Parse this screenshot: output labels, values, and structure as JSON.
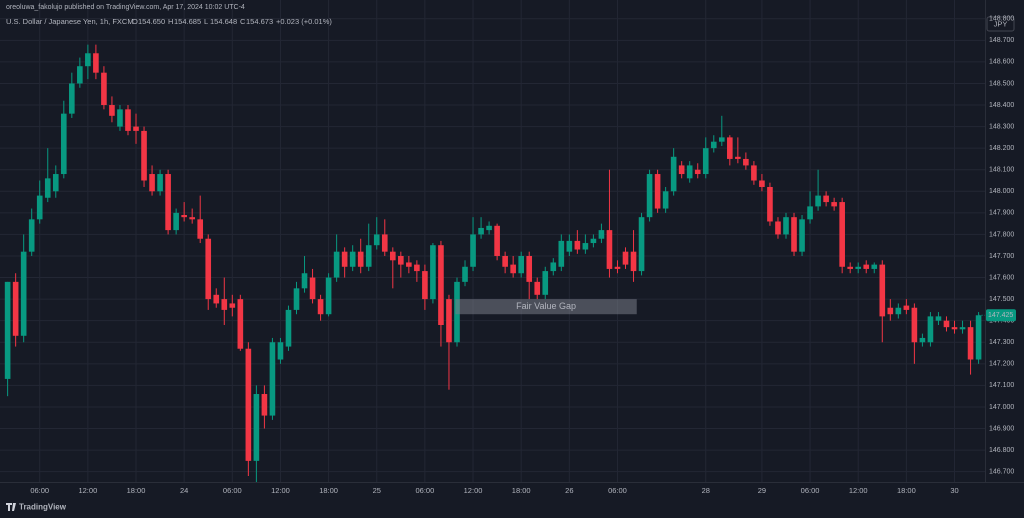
{
  "header": {
    "publisher": "oreoluwa_fakolujo published on TradingView.com, Apr 17, 2024 10:02 UTC-4",
    "footer": "TradingView"
  },
  "chart_data": {
    "type": "candlestick",
    "title": "U.S. Dollar / Japanese Yen, 1h, FXCM",
    "ohlc_readout": [
      {
        "label": "O",
        "value": "154.650"
      },
      {
        "label": "H",
        "value": "154.685"
      },
      {
        "label": "L",
        "value": "154.648"
      },
      {
        "label": "C",
        "value": "154.673"
      }
    ],
    "change": "+0.023 (+0.01%)",
    "currency": "JPY",
    "up_color": "#089981",
    "down_color": "#f23645",
    "series": {
      "open": [
        147.13,
        147.58,
        147.33,
        147.72,
        147.87,
        147.97,
        148.0,
        148.08,
        148.36,
        148.5,
        148.58,
        148.64,
        148.55,
        148.4,
        148.3,
        148.38,
        148.3,
        148.28,
        148.08,
        148.0,
        148.08,
        147.82,
        147.89,
        147.88,
        147.87,
        147.78,
        147.52,
        147.5,
        147.48,
        147.5,
        147.27,
        146.75,
        147.06,
        146.96,
        147.22,
        147.28,
        147.45,
        147.55,
        147.6,
        147.5,
        147.43,
        147.6,
        147.72,
        147.65,
        147.72,
        147.65,
        147.75,
        147.8,
        147.72,
        147.7,
        147.67,
        147.66,
        147.63,
        147.5,
        147.75,
        147.5,
        147.3,
        147.58,
        147.65,
        147.8,
        147.82,
        147.84,
        147.7,
        147.66,
        147.62,
        147.7,
        147.58,
        147.52,
        147.63,
        147.65,
        147.72,
        147.77,
        147.73,
        147.76,
        147.78,
        147.82,
        147.65,
        147.72,
        147.72,
        147.63,
        147.88,
        148.08,
        147.92,
        148.0,
        148.12,
        148.06,
        148.1,
        148.08,
        148.2,
        148.23,
        148.25,
        148.16,
        148.15,
        148.12,
        148.05,
        148.02,
        147.86,
        147.8,
        147.88,
        147.72,
        147.87,
        147.93,
        147.98,
        147.95,
        147.95,
        147.65,
        147.64,
        147.66,
        147.64,
        147.66,
        147.46,
        147.43,
        147.47,
        147.46,
        147.3,
        147.3,
        147.4,
        147.4,
        147.37,
        147.36,
        147.37,
        147.22
      ],
      "high": [
        147.58,
        147.62,
        147.8,
        147.92,
        148.05,
        148.2,
        148.12,
        148.42,
        148.55,
        148.62,
        148.68,
        148.68,
        148.58,
        148.44,
        148.4,
        148.4,
        148.36,
        148.3,
        148.12,
        148.1,
        148.1,
        147.92,
        147.95,
        147.92,
        147.98,
        147.8,
        147.55,
        147.6,
        147.52,
        147.52,
        147.3,
        147.1,
        147.1,
        147.32,
        147.32,
        147.47,
        147.58,
        147.7,
        147.64,
        147.52,
        147.62,
        147.8,
        147.74,
        147.75,
        147.78,
        147.85,
        147.88,
        147.87,
        147.74,
        147.72,
        147.7,
        147.68,
        147.66,
        147.76,
        147.77,
        147.52,
        147.6,
        147.68,
        147.88,
        147.88,
        147.86,
        147.85,
        147.72,
        147.7,
        147.72,
        147.72,
        147.6,
        147.65,
        147.69,
        147.8,
        147.8,
        147.82,
        147.8,
        147.8,
        147.85,
        148.1,
        147.68,
        147.74,
        147.82,
        147.9,
        148.1,
        148.1,
        148.02,
        148.2,
        148.14,
        148.14,
        148.13,
        148.25,
        148.26,
        148.35,
        148.26,
        148.25,
        148.18,
        148.14,
        148.08,
        148.04,
        147.88,
        147.9,
        147.9,
        147.89,
        148.0,
        148.1,
        148.0,
        147.97,
        147.97,
        147.67,
        147.67,
        147.68,
        147.67,
        147.68,
        147.5,
        147.48,
        147.5,
        147.48,
        147.34,
        147.44,
        147.44,
        147.42,
        147.4,
        147.4,
        147.4,
        147.44
      ],
      "low": [
        147.05,
        147.28,
        147.3,
        147.7,
        147.85,
        147.95,
        147.97,
        148.06,
        148.34,
        148.48,
        148.52,
        148.52,
        148.38,
        148.32,
        148.28,
        148.26,
        148.22,
        148.02,
        147.98,
        147.98,
        147.8,
        147.8,
        147.86,
        147.85,
        147.76,
        147.45,
        147.46,
        147.38,
        147.42,
        147.26,
        146.68,
        146.65,
        146.9,
        146.94,
        147.2,
        147.26,
        147.43,
        147.53,
        147.48,
        147.4,
        147.42,
        147.58,
        147.6,
        147.63,
        147.62,
        147.63,
        147.73,
        147.7,
        147.55,
        147.6,
        147.62,
        147.58,
        147.45,
        147.48,
        147.28,
        147.08,
        147.28,
        147.56,
        147.63,
        147.78,
        147.8,
        147.68,
        147.62,
        147.6,
        147.6,
        147.5,
        147.5,
        147.5,
        147.61,
        147.63,
        147.7,
        147.71,
        147.71,
        147.74,
        147.76,
        147.6,
        147.62,
        147.64,
        147.58,
        147.61,
        147.86,
        147.9,
        147.9,
        147.98,
        148.06,
        148.04,
        148.06,
        148.06,
        148.18,
        148.21,
        148.12,
        148.13,
        148.1,
        148.03,
        148.0,
        147.84,
        147.78,
        147.78,
        147.7,
        147.7,
        147.85,
        147.91,
        147.93,
        147.91,
        147.62,
        147.62,
        147.62,
        147.62,
        147.62,
        147.3,
        147.4,
        147.41,
        147.43,
        147.2,
        147.28,
        147.28,
        147.38,
        147.35,
        147.34,
        147.34,
        147.15,
        147.2
      ],
      "close": [
        147.58,
        147.33,
        147.72,
        147.87,
        147.98,
        148.06,
        148.08,
        148.36,
        148.5,
        148.58,
        148.64,
        148.55,
        148.4,
        148.35,
        148.38,
        148.28,
        148.28,
        148.05,
        148.0,
        148.08,
        147.82,
        147.9,
        147.88,
        147.87,
        147.78,
        147.5,
        147.48,
        147.45,
        147.46,
        147.27,
        146.75,
        147.06,
        146.96,
        147.3,
        147.3,
        147.45,
        147.55,
        147.62,
        147.5,
        147.43,
        147.6,
        147.72,
        147.65,
        147.72,
        147.65,
        147.75,
        147.8,
        147.72,
        147.68,
        147.66,
        147.65,
        147.63,
        147.5,
        147.75,
        147.38,
        147.3,
        147.58,
        147.65,
        147.8,
        147.83,
        147.84,
        147.7,
        147.65,
        147.62,
        147.7,
        147.58,
        147.52,
        147.63,
        147.67,
        147.77,
        147.77,
        147.73,
        147.76,
        147.78,
        147.82,
        147.64,
        147.64,
        147.66,
        147.63,
        147.88,
        148.08,
        147.92,
        148.0,
        148.16,
        148.08,
        148.12,
        148.08,
        148.2,
        148.23,
        148.25,
        148.15,
        148.15,
        148.12,
        148.05,
        148.02,
        147.86,
        147.8,
        147.88,
        147.72,
        147.87,
        147.93,
        147.98,
        147.95,
        147.93,
        147.65,
        147.64,
        147.65,
        147.64,
        147.66,
        147.42,
        147.43,
        147.46,
        147.45,
        147.3,
        147.32,
        147.42,
        147.42,
        147.37,
        147.36,
        147.37,
        147.22,
        147.425
      ]
    },
    "fair_value_gap": {
      "label": "Fair Value Gap",
      "x": [
        55.8,
        78.4
      ],
      "y": [
        147.43,
        147.5
      ]
    },
    "xlim": [
      -0.95,
      121.8
    ],
    "xticks": [
      {
        "value": 4,
        "label": "06:00"
      },
      {
        "value": 10,
        "label": "12:00"
      },
      {
        "value": 16,
        "label": "18:00"
      },
      {
        "value": 22,
        "label": "24"
      },
      {
        "value": 28,
        "label": "06:00"
      },
      {
        "value": 34,
        "label": "12:00"
      },
      {
        "value": 40,
        "label": "18:00"
      },
      {
        "value": 46,
        "label": "25"
      },
      {
        "value": 52,
        "label": "06:00"
      },
      {
        "value": 58,
        "label": "12:00"
      },
      {
        "value": 64,
        "label": "18:00"
      },
      {
        "value": 70,
        "label": "26"
      },
      {
        "value": 76,
        "label": "06:00"
      },
      {
        "value": 87,
        "label": "28"
      },
      {
        "value": 94,
        "label": "29"
      },
      {
        "value": 100,
        "label": "06:00"
      },
      {
        "value": 106,
        "label": "12:00"
      },
      {
        "value": 112,
        "label": "18:00"
      },
      {
        "value": 118,
        "label": "30"
      }
    ],
    "ylim": [
      146.652,
      148.887
    ],
    "yticks": [
      {
        "value": 146.7,
        "label": "146.700"
      },
      {
        "value": 146.8,
        "label": "146.800"
      },
      {
        "value": 146.9,
        "label": "146.900"
      },
      {
        "value": 147.0,
        "label": "147.000"
      },
      {
        "value": 147.1,
        "label": "147.100"
      },
      {
        "value": 147.2,
        "label": "147.200"
      },
      {
        "value": 147.3,
        "label": "147.300"
      },
      {
        "value": 147.4,
        "label": "147.400"
      },
      {
        "value": 147.5,
        "label": "147.500"
      },
      {
        "value": 147.6,
        "label": "147.600"
      },
      {
        "value": 147.7,
        "label": "147.700"
      },
      {
        "value": 147.8,
        "label": "147.800"
      },
      {
        "value": 147.9,
        "label": "147.900"
      },
      {
        "value": 148.0,
        "label": "148.000"
      },
      {
        "value": 148.1,
        "label": "148.100"
      },
      {
        "value": 148.2,
        "label": "148.200"
      },
      {
        "value": 148.3,
        "label": "148.300"
      },
      {
        "value": 148.4,
        "label": "148.400"
      },
      {
        "value": 148.5,
        "label": "148.500"
      },
      {
        "value": 148.6,
        "label": "148.600"
      },
      {
        "value": 148.7,
        "label": "148.700"
      },
      {
        "value": 148.8,
        "label": "148.800"
      }
    ],
    "grid": true
  }
}
